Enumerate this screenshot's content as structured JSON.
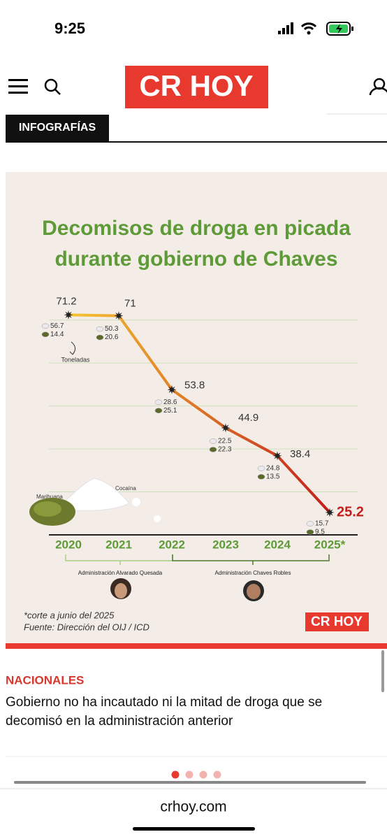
{
  "status_bar": {
    "time": "9:25"
  },
  "header": {
    "logo": "CR HOY"
  },
  "section_tab": "INFOGRAFÍAS",
  "chart_data": {
    "type": "line",
    "title": [
      "Decomisos de droga en picada",
      "durante gobierno de Chaves"
    ],
    "categories": [
      "2020",
      "2021",
      "2022",
      "2023",
      "2024",
      "2025*"
    ],
    "values": [
      71.2,
      71,
      53.8,
      44.9,
      38.4,
      25.2
    ],
    "breakdown": [
      {
        "name": "Cocaína",
        "color": "#e9e9ee",
        "values": [
          56.7,
          50.3,
          28.6,
          22.5,
          24.8,
          15.7
        ]
      },
      {
        "name": "Marihuana",
        "color": "#5b6a2a",
        "values": [
          14.4,
          20.6,
          25.1,
          22.3,
          13.5,
          9.5
        ]
      }
    ],
    "unit_label": "Toneladas",
    "ylim": [
      20,
      75
    ],
    "yticks": [
      30,
      40,
      50,
      60,
      70
    ],
    "grid": true,
    "grid_color": "#cfe0bf",
    "line_colors": [
      "#f6c632",
      "#c21f1c"
    ],
    "periods": [
      "Administración Alvarado Quesada",
      "Administración Chaves Robles"
    ],
    "notes": [
      "*corte a junio del 2025",
      "Fuente: Dirección del OIJ / ICD"
    ],
    "brand": "CR HOY"
  },
  "article": {
    "section": "NACIONALES",
    "headline": [
      "Gobierno no ha incautado ni la mitad de droga que se",
      "decomisó en la administración anterior"
    ]
  },
  "url_bar": "crhoy.com"
}
